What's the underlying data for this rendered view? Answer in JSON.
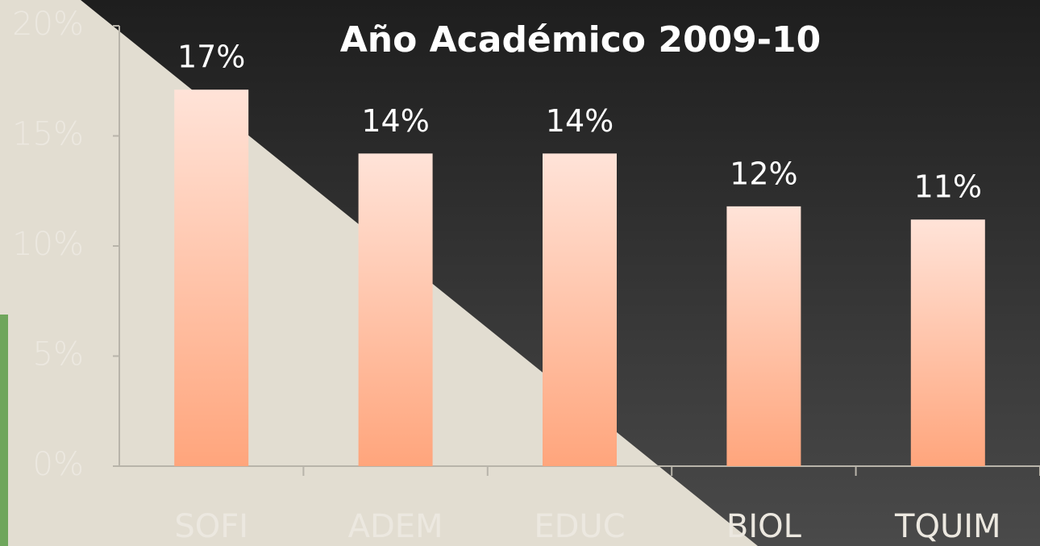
{
  "chart_data": {
    "type": "bar",
    "title": "Año Académico 2009-10",
    "categories": [
      "SOFI",
      "ADEM",
      "EDUC",
      "BIOL",
      "TQUIM"
    ],
    "values": [
      17.1,
      14.2,
      14.2,
      11.8,
      11.2
    ],
    "value_labels": [
      "17%",
      "14%",
      "14%",
      "12%",
      "11%"
    ],
    "color": "#ffb08e",
    "ylim": [
      0,
      20
    ],
    "yticks": [
      {
        "value": 0,
        "label": "0%"
      },
      {
        "value": 5,
        "label": "5%"
      },
      {
        "value": 10,
        "label": "10%"
      },
      {
        "value": 15,
        "label": "15%"
      },
      {
        "value": 20,
        "label": "20%"
      }
    ],
    "grid": false
  }
}
